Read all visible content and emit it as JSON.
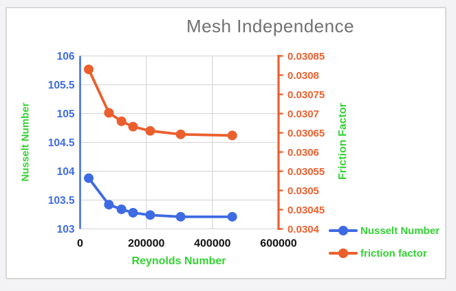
{
  "styles": {
    "page_background": "#f3f3f5",
    "card_background": "#ffffff",
    "card_border": "#d7d7d7",
    "grid_color": "#d9d9d9",
    "title_color": "#717171",
    "x_tick_color": "#101010",
    "green_label_color": "#32d232",
    "blue_series_color": "#3e6be4",
    "orange_series_color": "#eb5f2d"
  },
  "chart_data": {
    "type": "line",
    "title": "Mesh Independence",
    "xlabel": "Reynolds Number",
    "ylabel_left": "Nusselt Number",
    "ylabel_right": "Friction Factor",
    "grid": "on",
    "x": [
      26000,
      87000,
      125000,
      160000,
      212000,
      304000,
      460000
    ],
    "series": [
      {
        "name": "Nusselt Number",
        "axis": "left",
        "color": "#3e6be4",
        "values": [
          103.88,
          103.42,
          103.34,
          103.28,
          103.24,
          103.21,
          103.21
        ]
      },
      {
        "name": "friction factor",
        "axis": "right",
        "color": "#eb5f2d",
        "values": [
          0.030815,
          0.030702,
          0.03068,
          0.030666,
          0.030655,
          0.030646,
          0.030643
        ]
      }
    ],
    "x_ticks": {
      "values": [
        0,
        200000,
        400000,
        600000
      ],
      "labels": [
        "0",
        "200000",
        "400000",
        "600000"
      ]
    },
    "y_left": {
      "min": 103,
      "max": 106,
      "tick_values": [
        106,
        105.5,
        105,
        104.5,
        104,
        103.5,
        103
      ],
      "tick_labels": [
        "106",
        "105.5",
        "105",
        "104.5",
        "104",
        "103.5",
        "103"
      ]
    },
    "y_right": {
      "min": 0.0304,
      "max": 0.03085,
      "tick_labels": [
        "0.03085",
        "0.0308",
        "0.03075",
        "0.0307",
        "0.03065",
        "0.0306",
        "0.03055",
        "0.0305",
        "0.03045",
        "0.0304"
      ]
    },
    "legend": {
      "position": "bottom-right",
      "entries": [
        "Nusselt Number",
        "friction factor"
      ]
    }
  }
}
